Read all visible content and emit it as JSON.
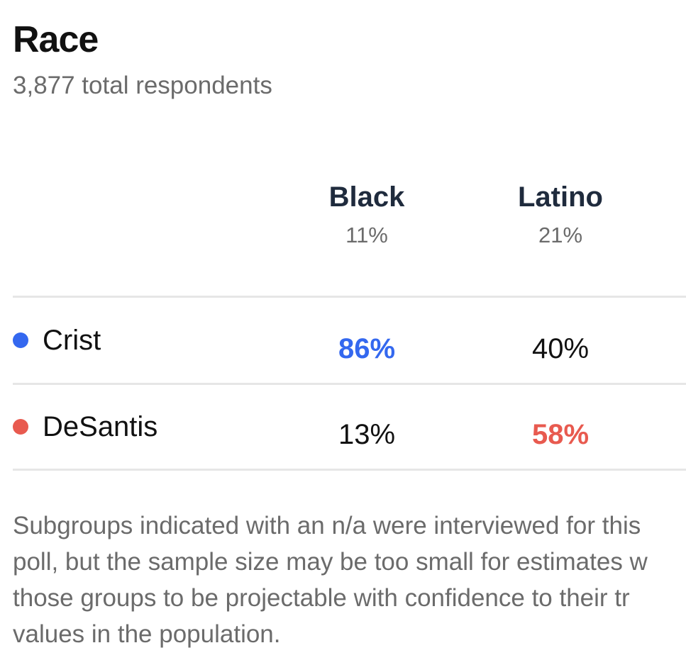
{
  "header": {
    "title": "Race",
    "subtitle": "3,877 total respondents"
  },
  "colors": {
    "crist": "#3468ef",
    "desantis": "#e85a4f"
  },
  "chart_data": {
    "type": "table",
    "title": "Race",
    "subtitle": "3,877 total respondents",
    "columns": [
      {
        "name": "Black",
        "share": "11%"
      },
      {
        "name": "Latino",
        "share": "21%"
      }
    ],
    "rows": [
      {
        "candidate": "Crist",
        "values": [
          "86%",
          "40%"
        ],
        "winner_col": 0
      },
      {
        "candidate": "DeSantis",
        "values": [
          "13%",
          "58%"
        ],
        "winner_col": 1
      }
    ]
  },
  "note": "Subgroups indicated with an n/a were interviewed for this\npoll, but the sample size may be too small for estimates w\nthose groups to be projectable with confidence to their tr\nvalues in the population."
}
